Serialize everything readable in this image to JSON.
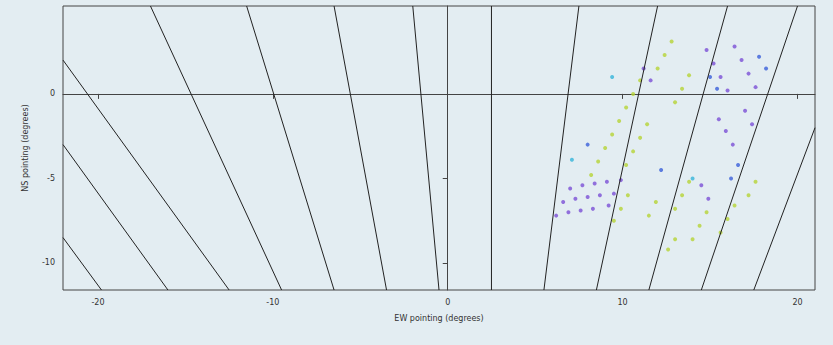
{
  "chart_data": {
    "type": "scatter",
    "x_label": "EW pointing (degrees)",
    "y_label": "NS pointing (degrees)",
    "xlim": [
      -22,
      21
    ],
    "ylim": [
      -11.6,
      5.2
    ],
    "xticks": [
      -20,
      -10,
      0,
      10,
      20
    ],
    "yticks": [
      -10,
      -5,
      0
    ],
    "grid": false,
    "series": [
      {
        "type": "line",
        "line_style": "solid",
        "color": "#222222",
        "x": [
          -22,
          -19.8
        ],
        "y": [
          -8.5,
          -11.6
        ]
      },
      {
        "type": "line",
        "line_style": "solid",
        "color": "#222222",
        "x": [
          -22,
          -16
        ],
        "y": [
          -3,
          -11.6
        ]
      },
      {
        "type": "line",
        "line_style": "solid",
        "color": "#222222",
        "x": [
          -22,
          -12.5
        ],
        "y": [
          2,
          -11.6
        ]
      },
      {
        "type": "line",
        "line_style": "solid",
        "color": "#222222",
        "x": [
          -17,
          -9.5
        ],
        "y": [
          5.2,
          -11.6
        ]
      },
      {
        "type": "line",
        "line_style": "solid",
        "color": "#222222",
        "x": [
          -11.5,
          -6.5
        ],
        "y": [
          5.2,
          -11.6
        ]
      },
      {
        "type": "line",
        "line_style": "solid",
        "color": "#222222",
        "x": [
          -6.5,
          -3.5
        ],
        "y": [
          5.2,
          -11.6
        ]
      },
      {
        "type": "line",
        "line_style": "solid",
        "color": "#222222",
        "x": [
          -2,
          -0.5
        ],
        "y": [
          5.2,
          -11.6
        ]
      },
      {
        "type": "line",
        "line_style": "solid",
        "color": "#222222",
        "x": [
          2.5,
          2.5
        ],
        "y": [
          5.2,
          -11.6
        ]
      },
      {
        "type": "line",
        "line_style": "solid",
        "color": "#222222",
        "x": [
          7.5,
          5.5
        ],
        "y": [
          5.2,
          -11.6
        ]
      },
      {
        "type": "line",
        "line_style": "solid",
        "color": "#222222",
        "x": [
          12,
          8.5
        ],
        "y": [
          5.2,
          -11.6
        ]
      },
      {
        "type": "line",
        "line_style": "solid",
        "color": "#222222",
        "x": [
          16,
          11.5
        ],
        "y": [
          5.2,
          -11.6
        ]
      },
      {
        "type": "line",
        "line_style": "solid",
        "color": "#222222",
        "x": [
          20,
          14.5
        ],
        "y": [
          5.2,
          -11.6
        ]
      },
      {
        "type": "line",
        "line_style": "solid",
        "color": "#222222",
        "x": [
          21,
          17.5
        ],
        "y": [
          -2,
          -11.6
        ]
      },
      {
        "type": "scatter",
        "marker": "circle",
        "color": "#7b4fd6",
        "x": [
          6.2,
          6.6,
          7.0,
          6.9,
          7.3,
          7.7,
          7.6,
          8.0,
          8.4,
          8.3,
          8.7,
          9.1,
          9.2,
          9.5,
          9.9,
          14.8,
          15.2,
          15.6,
          16.0,
          16.4,
          16.8,
          17.2,
          17.6,
          15.5,
          15.9,
          16.3,
          17.0,
          17.4,
          14.5,
          14.9,
          11.2,
          11.6
        ],
        "y": [
          -7.2,
          -6.4,
          -5.6,
          -7.0,
          -6.2,
          -5.4,
          -6.9,
          -6.1,
          -5.3,
          -6.8,
          -6.0,
          -5.2,
          -6.6,
          -5.9,
          -5.1,
          2.6,
          1.8,
          1.0,
          0.2,
          2.8,
          2.0,
          1.2,
          0.4,
          -1.5,
          -2.2,
          -3.0,
          -1.0,
          -1.8,
          -5.4,
          -6.2,
          1.5,
          0.8
        ]
      },
      {
        "type": "scatter",
        "marker": "circle",
        "color": "#b5d334",
        "x": [
          8.2,
          8.6,
          9.0,
          9.4,
          9.8,
          10.2,
          10.6,
          11.0,
          10.2,
          10.6,
          11.0,
          11.4,
          12.0,
          12.4,
          12.8,
          13.0,
          13.4,
          13.8,
          9.5,
          9.9,
          10.3,
          11.5,
          11.9,
          13.0,
          13.4,
          13.8,
          14.0,
          14.4,
          14.8,
          15.6,
          16.0,
          16.4,
          17.2,
          17.6,
          12.6,
          13.0
        ],
        "y": [
          -4.8,
          -4.0,
          -3.2,
          -2.4,
          -1.6,
          -0.8,
          0.0,
          0.8,
          -4.2,
          -3.4,
          -2.6,
          -1.8,
          1.5,
          2.3,
          3.1,
          -0.5,
          0.3,
          1.1,
          -7.5,
          -6.8,
          -6.0,
          -7.2,
          -6.4,
          -6.8,
          -6.0,
          -5.2,
          -8.6,
          -7.8,
          -7.0,
          -8.2,
          -7.4,
          -6.6,
          -6.0,
          -5.2,
          -9.2,
          -8.6
        ]
      },
      {
        "type": "scatter",
        "marker": "circle",
        "color": "#3a5fd9",
        "x": [
          15.0,
          15.4,
          17.8,
          18.2,
          16.2,
          16.6,
          8.0,
          12.2
        ],
        "y": [
          1.0,
          0.3,
          2.2,
          1.5,
          -5.0,
          -4.2,
          -3.0,
          -4.5
        ]
      },
      {
        "type": "scatter",
        "marker": "circle",
        "color": "#34b4d9",
        "x": [
          7.1,
          9.4,
          14.0
        ],
        "y": [
          -3.9,
          1.0,
          -5.0
        ]
      }
    ]
  }
}
